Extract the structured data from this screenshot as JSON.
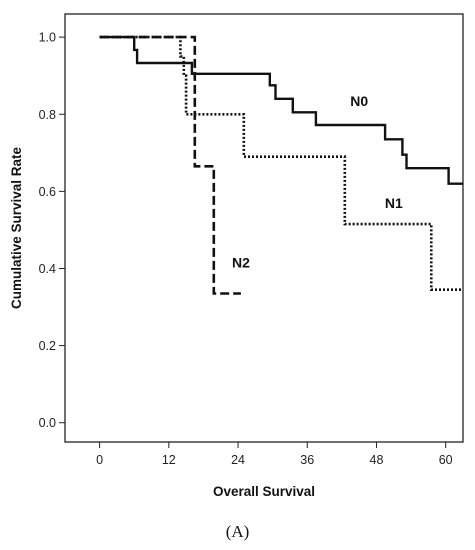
{
  "chart_data": {
    "type": "line",
    "subtype": "step",
    "xlabel": "Overall Survival",
    "ylabel": "Cumulative Survival Rate",
    "xlim": [
      -6,
      63
    ],
    "ylim": [
      -0.05,
      1.06
    ],
    "x_ticks": [
      0,
      12,
      24,
      36,
      48,
      60
    ],
    "y_ticks": [
      "0.0",
      "0.2",
      "0.4",
      "0.6",
      "0.8",
      "1.0"
    ],
    "grid": false,
    "series": [
      {
        "name": "N0",
        "style": "solid",
        "points": [
          [
            0,
            1.0
          ],
          [
            6,
            1.0
          ],
          [
            6,
            0.967
          ],
          [
            6.5,
            0.967
          ],
          [
            6.5,
            0.933
          ],
          [
            16,
            0.933
          ],
          [
            16,
            0.905
          ],
          [
            29.5,
            0.905
          ],
          [
            29.5,
            0.875
          ],
          [
            30.5,
            0.875
          ],
          [
            30.5,
            0.84
          ],
          [
            33.5,
            0.84
          ],
          [
            33.5,
            0.805
          ],
          [
            37.5,
            0.805
          ],
          [
            37.5,
            0.772
          ],
          [
            49.5,
            0.772
          ],
          [
            49.5,
            0.735
          ],
          [
            52.5,
            0.735
          ],
          [
            52.5,
            0.695
          ],
          [
            53.2,
            0.695
          ],
          [
            53.2,
            0.66
          ],
          [
            60.5,
            0.66
          ],
          [
            60.5,
            0.62
          ],
          [
            63,
            0.62
          ]
        ]
      },
      {
        "name": "N1",
        "style": "dotted",
        "points": [
          [
            0,
            1.0
          ],
          [
            14,
            1.0
          ],
          [
            14,
            0.95
          ],
          [
            14.6,
            0.95
          ],
          [
            14.6,
            0.9
          ],
          [
            15,
            0.9
          ],
          [
            15,
            0.8
          ],
          [
            25,
            0.8
          ],
          [
            25,
            0.69
          ],
          [
            42.5,
            0.69
          ],
          [
            42.5,
            0.515
          ],
          [
            57.5,
            0.515
          ],
          [
            57.5,
            0.345
          ],
          [
            63,
            0.345
          ]
        ]
      },
      {
        "name": "N2",
        "style": "dashed",
        "points": [
          [
            0,
            1.0
          ],
          [
            16.5,
            1.0
          ],
          [
            16.5,
            0.665
          ],
          [
            19.8,
            0.665
          ],
          [
            19.8,
            0.335
          ],
          [
            24.5,
            0.335
          ]
        ]
      }
    ],
    "labels": [
      {
        "text": "N0",
        "x": 45,
        "y": 0.835
      },
      {
        "text": "N1",
        "x": 51,
        "y": 0.57
      },
      {
        "text": "N2",
        "x": 24.5,
        "y": 0.415
      }
    ]
  },
  "panel_label": "(A)"
}
